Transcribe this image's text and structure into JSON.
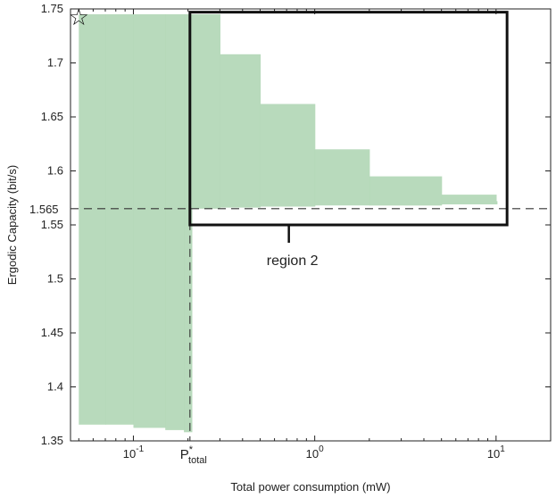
{
  "chart_data": {
    "type": "scatter",
    "title": "",
    "xlabel": "Total power consumption (mW)",
    "ylabel": "Ergodic Capacity (bit/s)",
    "x_scale": "log",
    "xlim": [
      0.045,
      20
    ],
    "ylim": [
      1.35,
      1.75
    ],
    "x_ticks": [
      {
        "value": 0.1,
        "base": "10",
        "exp": "-1"
      },
      {
        "value": 1,
        "base": "10",
        "exp": "0"
      },
      {
        "value": 10,
        "base": "10",
        "exp": "1"
      }
    ],
    "y_ticks": [
      "1.35",
      "1.4",
      "1.45",
      "1.5",
      "1.55",
      "1.6",
      "1.65",
      "1.7",
      "1.75"
    ],
    "grid": false,
    "point_color": "#b4d8b8",
    "series": [
      {
        "points": [
          {
            "x": 0.05,
            "y_min": 1.365,
            "y_max": 1.745
          },
          {
            "x": 0.07,
            "y_min": 1.365,
            "y_max": 1.745
          },
          {
            "x": 0.1,
            "y_min": 1.362,
            "y_max": 1.745
          },
          {
            "x": 0.15,
            "y_min": 1.36,
            "y_max": 1.745
          },
          {
            "x": 0.19,
            "y_min": 1.358,
            "y_max": 1.745
          },
          {
            "x": 0.21,
            "y_min": 1.565,
            "y_max": 1.745
          },
          {
            "x": 0.3,
            "y_min": 1.566,
            "y_max": 1.708
          },
          {
            "x": 0.5,
            "y_min": 1.567,
            "y_max": 1.662
          },
          {
            "x": 1.0,
            "y_min": 1.568,
            "y_max": 1.62
          },
          {
            "x": 2.0,
            "y_min": 1.568,
            "y_max": 1.595
          },
          {
            "x": 5.0,
            "y_min": 1.569,
            "y_max": 1.578
          },
          {
            "x": 10.0,
            "y_min": 1.569,
            "y_max": 1.572
          }
        ]
      }
    ],
    "annotations": {
      "hline_label": "1.565",
      "hline_y": 1.565,
      "vline_x": 0.205,
      "vline_label": {
        "base": "P",
        "sup": "*",
        "sub": "total"
      },
      "optimum_marker": {
        "symbol": "☆",
        "x": 0.05,
        "y": 1.745
      },
      "region_label": "region 2",
      "region_box": {
        "x_from": 0.205,
        "x_to": 11.5,
        "y_from": 1.55,
        "y_to": 1.747
      }
    }
  }
}
